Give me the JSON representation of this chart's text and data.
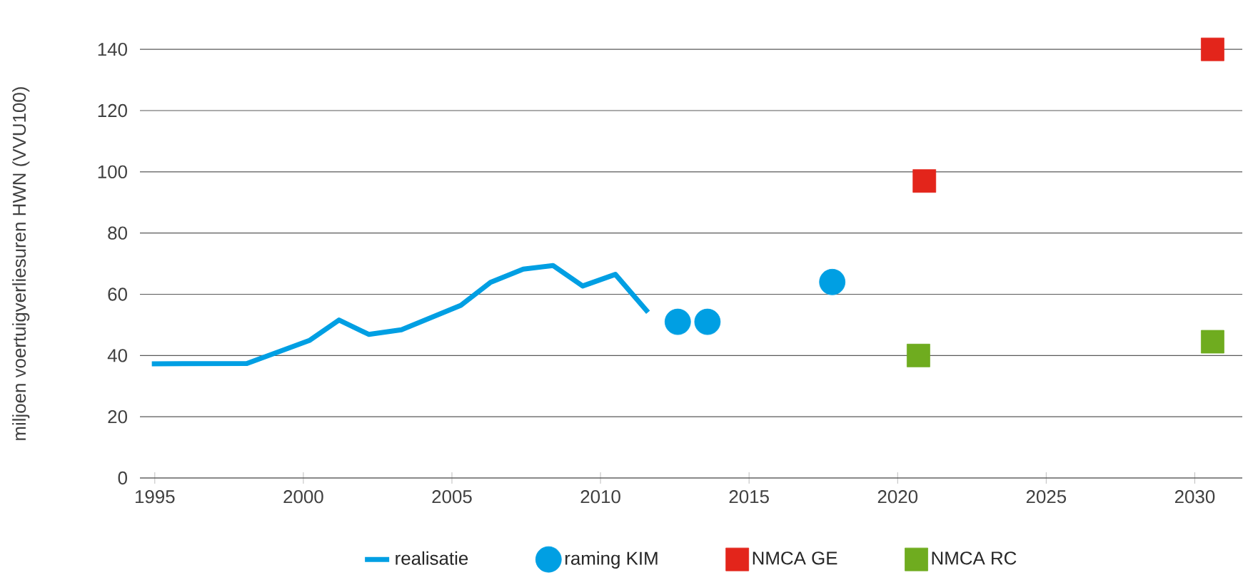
{
  "chart_data": {
    "type": "line",
    "ylabel": "miljoen voertuigverliesuren HWN (VVU100)",
    "xlim": [
      1994.5,
      2031.6
    ],
    "ylim": [
      0,
      140
    ],
    "xticks": [
      1995,
      2000,
      2005,
      2010,
      2015,
      2020,
      2025,
      2030
    ],
    "yticks": [
      0,
      20,
      40,
      60,
      80,
      100,
      120,
      140
    ],
    "grid": "y",
    "legend": "bottom",
    "series": [
      {
        "name": "realisatie",
        "color": "#009fe3",
        "marker": "none",
        "line_style": "solid",
        "x": [
          1994.9,
          1998.1,
          2000.2,
          2001.2,
          2002.2,
          2003.3,
          2005.3,
          2006.3,
          2007.4,
          2008.4,
          2009.4,
          2010.5,
          2011.6
        ],
        "values": [
          37.3,
          37.4,
          44.9,
          51.6,
          46.9,
          48.4,
          56.4,
          63.9,
          68.2,
          69.4,
          62.7,
          66.5,
          54.1
        ]
      },
      {
        "name": "raming KIM",
        "type": "scatter",
        "color": "#009fe3",
        "marker": "circle",
        "x": [
          2012.6,
          2013.6,
          2017.8
        ],
        "values": [
          51,
          51,
          64
        ]
      },
      {
        "name": "NMCA  GE",
        "type": "scatter",
        "color": "#e3251b",
        "marker": "square",
        "x": [
          2020.9,
          2030.6
        ],
        "values": [
          97,
          140
        ]
      },
      {
        "name": "NMCA  RC",
        "type": "scatter",
        "color": "#6fac1f",
        "marker": "square",
        "x": [
          2020.7,
          2030.6
        ],
        "values": [
          40,
          44.5
        ]
      }
    ]
  }
}
